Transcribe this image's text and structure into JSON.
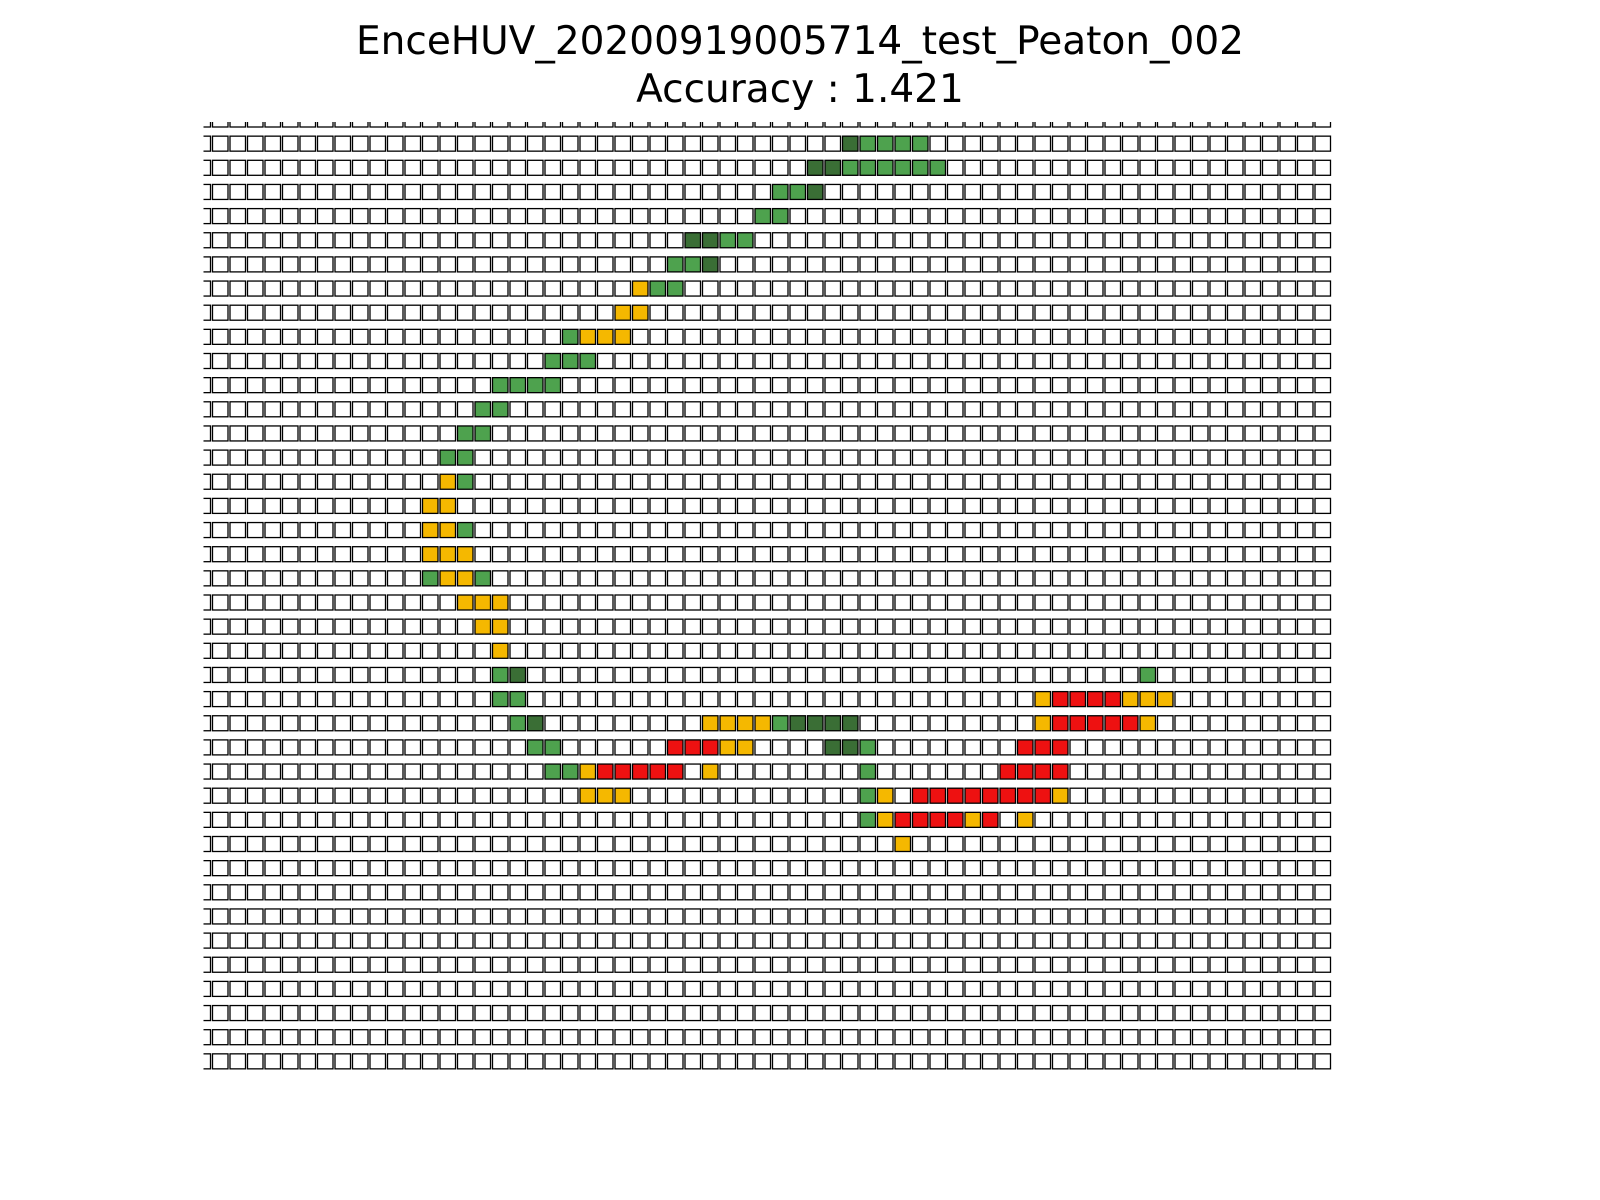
{
  "chart_data": {
    "type": "heatmap",
    "title": "EnceHUV_20200919005714_test_Peaton_002",
    "subtitle": "Accuracy : 1.421",
    "rows": 40,
    "cols": 65,
    "colors": {
      "empty": "#ffffff",
      "G": "#4ea24e",
      "D": "#3a6e35",
      "Y": "#f5b800",
      "R": "#ee1111",
      "edge": "#000000"
    },
    "cells": [
      {
        "row": 1,
        "cells": [
          [
            37,
            "D"
          ],
          [
            38,
            "G"
          ],
          [
            39,
            "G"
          ],
          [
            40,
            "G"
          ],
          [
            41,
            "G"
          ]
        ]
      },
      {
        "row": 2,
        "cells": [
          [
            35,
            "D"
          ],
          [
            36,
            "D"
          ],
          [
            37,
            "G"
          ],
          [
            38,
            "G"
          ],
          [
            39,
            "G"
          ],
          [
            40,
            "G"
          ],
          [
            41,
            "G"
          ],
          [
            42,
            "G"
          ]
        ]
      },
      {
        "row": 3,
        "cells": [
          [
            33,
            "G"
          ],
          [
            34,
            "G"
          ],
          [
            35,
            "D"
          ]
        ]
      },
      {
        "row": 4,
        "cells": [
          [
            32,
            "G"
          ],
          [
            33,
            "G"
          ]
        ]
      },
      {
        "row": 5,
        "cells": [
          [
            28,
            "D"
          ],
          [
            29,
            "D"
          ],
          [
            30,
            "G"
          ],
          [
            31,
            "G"
          ]
        ]
      },
      {
        "row": 6,
        "cells": [
          [
            27,
            "G"
          ],
          [
            28,
            "G"
          ],
          [
            29,
            "D"
          ]
        ]
      },
      {
        "row": 7,
        "cells": [
          [
            25,
            "Y"
          ],
          [
            26,
            "G"
          ],
          [
            27,
            "G"
          ]
        ]
      },
      {
        "row": 8,
        "cells": [
          [
            24,
            "Y"
          ],
          [
            25,
            "Y"
          ]
        ]
      },
      {
        "row": 9,
        "cells": [
          [
            21,
            "G"
          ],
          [
            22,
            "Y"
          ],
          [
            23,
            "Y"
          ],
          [
            24,
            "Y"
          ]
        ]
      },
      {
        "row": 10,
        "cells": [
          [
            20,
            "G"
          ],
          [
            21,
            "G"
          ],
          [
            22,
            "G"
          ]
        ]
      },
      {
        "row": 11,
        "cells": [
          [
            17,
            "G"
          ],
          [
            18,
            "G"
          ],
          [
            19,
            "G"
          ],
          [
            20,
            "G"
          ]
        ]
      },
      {
        "row": 12,
        "cells": [
          [
            16,
            "G"
          ],
          [
            17,
            "G"
          ]
        ]
      },
      {
        "row": 13,
        "cells": [
          [
            15,
            "G"
          ],
          [
            16,
            "G"
          ]
        ]
      },
      {
        "row": 14,
        "cells": [
          [
            14,
            "G"
          ],
          [
            15,
            "G"
          ]
        ]
      },
      {
        "row": 15,
        "cells": [
          [
            14,
            "Y"
          ],
          [
            15,
            "G"
          ]
        ]
      },
      {
        "row": 16,
        "cells": [
          [
            13,
            "Y"
          ],
          [
            14,
            "Y"
          ]
        ]
      },
      {
        "row": 17,
        "cells": [
          [
            13,
            "Y"
          ],
          [
            14,
            "Y"
          ],
          [
            15,
            "G"
          ]
        ]
      },
      {
        "row": 18,
        "cells": [
          [
            13,
            "Y"
          ],
          [
            14,
            "Y"
          ],
          [
            15,
            "Y"
          ]
        ]
      },
      {
        "row": 19,
        "cells": [
          [
            13,
            "G"
          ],
          [
            14,
            "Y"
          ],
          [
            15,
            "Y"
          ],
          [
            16,
            "G"
          ]
        ]
      },
      {
        "row": 20,
        "cells": [
          [
            15,
            "Y"
          ],
          [
            16,
            "Y"
          ],
          [
            17,
            "Y"
          ]
        ]
      },
      {
        "row": 21,
        "cells": [
          [
            16,
            "Y"
          ],
          [
            17,
            "Y"
          ]
        ]
      },
      {
        "row": 22,
        "cells": [
          [
            17,
            "Y"
          ]
        ]
      },
      {
        "row": 23,
        "cells": [
          [
            17,
            "G"
          ],
          [
            18,
            "D"
          ],
          [
            54,
            "G"
          ]
        ]
      },
      {
        "row": 24,
        "cells": [
          [
            17,
            "G"
          ],
          [
            18,
            "G"
          ],
          [
            48,
            "Y"
          ],
          [
            49,
            "R"
          ],
          [
            50,
            "R"
          ],
          [
            51,
            "R"
          ],
          [
            52,
            "R"
          ],
          [
            53,
            "Y"
          ],
          [
            54,
            "Y"
          ],
          [
            55,
            "Y"
          ]
        ]
      },
      {
        "row": 25,
        "cells": [
          [
            18,
            "G"
          ],
          [
            19,
            "D"
          ],
          [
            29,
            "Y"
          ],
          [
            30,
            "Y"
          ],
          [
            31,
            "Y"
          ],
          [
            32,
            "Y"
          ],
          [
            33,
            "G"
          ],
          [
            34,
            "D"
          ],
          [
            35,
            "D"
          ],
          [
            36,
            "D"
          ],
          [
            37,
            "D"
          ],
          [
            48,
            "Y"
          ],
          [
            49,
            "R"
          ],
          [
            50,
            "R"
          ],
          [
            51,
            "R"
          ],
          [
            52,
            "R"
          ],
          [
            53,
            "R"
          ],
          [
            54,
            "Y"
          ]
        ]
      },
      {
        "row": 26,
        "cells": [
          [
            19,
            "G"
          ],
          [
            20,
            "G"
          ],
          [
            27,
            "R"
          ],
          [
            28,
            "R"
          ],
          [
            29,
            "R"
          ],
          [
            30,
            "Y"
          ],
          [
            31,
            "Y"
          ],
          [
            36,
            "D"
          ],
          [
            37,
            "D"
          ],
          [
            38,
            "G"
          ],
          [
            47,
            "R"
          ],
          [
            48,
            "R"
          ],
          [
            49,
            "R"
          ]
        ]
      },
      {
        "row": 27,
        "cells": [
          [
            20,
            "G"
          ],
          [
            21,
            "G"
          ],
          [
            22,
            "Y"
          ],
          [
            23,
            "R"
          ],
          [
            24,
            "R"
          ],
          [
            25,
            "R"
          ],
          [
            26,
            "R"
          ],
          [
            27,
            "R"
          ],
          [
            29,
            "Y"
          ],
          [
            38,
            "G"
          ],
          [
            46,
            "R"
          ],
          [
            47,
            "R"
          ],
          [
            48,
            "R"
          ],
          [
            49,
            "R"
          ]
        ]
      },
      {
        "row": 28,
        "cells": [
          [
            22,
            "Y"
          ],
          [
            23,
            "Y"
          ],
          [
            24,
            "Y"
          ],
          [
            38,
            "G"
          ],
          [
            39,
            "Y"
          ],
          [
            41,
            "R"
          ],
          [
            42,
            "R"
          ],
          [
            43,
            "R"
          ],
          [
            44,
            "R"
          ],
          [
            45,
            "R"
          ],
          [
            46,
            "R"
          ],
          [
            47,
            "R"
          ],
          [
            48,
            "R"
          ],
          [
            49,
            "Y"
          ]
        ]
      },
      {
        "row": 29,
        "cells": [
          [
            38,
            "G"
          ],
          [
            39,
            "Y"
          ],
          [
            40,
            "R"
          ],
          [
            41,
            "R"
          ],
          [
            42,
            "R"
          ],
          [
            43,
            "R"
          ],
          [
            44,
            "Y"
          ],
          [
            45,
            "R"
          ],
          [
            47,
            "Y"
          ]
        ]
      },
      {
        "row": 30,
        "cells": [
          [
            40,
            "Y"
          ]
        ]
      }
    ]
  }
}
